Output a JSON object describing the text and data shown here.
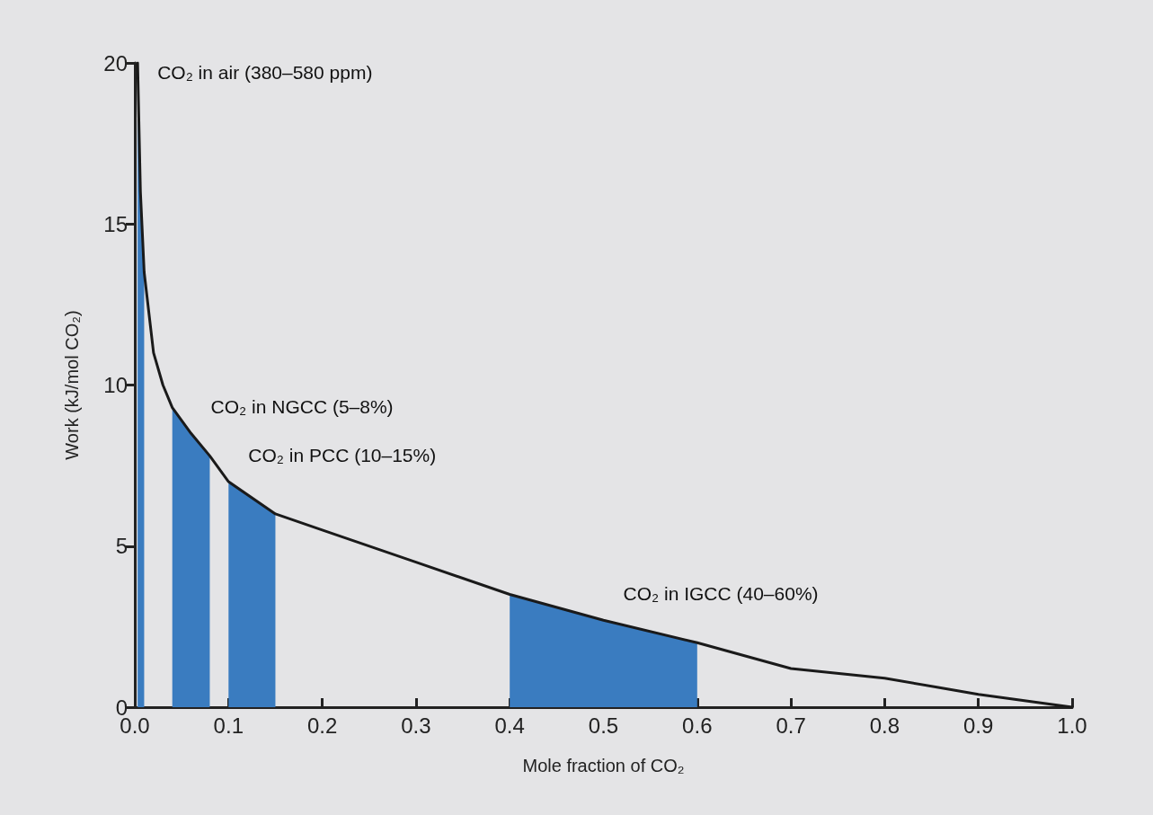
{
  "chart_data": {
    "type": "line",
    "xlabel": "Mole fraction of CO₂",
    "ylabel": "Work (kJ/mol CO₂)",
    "xlim": [
      0,
      1
    ],
    "ylim": [
      0,
      20
    ],
    "xticks": [
      {
        "value": 0,
        "label": "0.0"
      },
      0.1,
      0.2,
      0.3,
      0.4,
      0.5,
      0.6,
      0.7,
      0.8,
      0.9,
      {
        "value": 1,
        "label": "1.0"
      }
    ],
    "yticks": [
      0,
      5,
      10,
      15,
      20
    ],
    "grid": false,
    "marker": "none",
    "line_style": "solid",
    "series": [
      {
        "type": "area",
        "color": "#3a7cc0",
        "x": [
          0.003,
          0.006,
          0.01
        ],
        "values": [
          20,
          16,
          13.5
        ]
      },
      {
        "type": "area",
        "color": "#3a7cc0",
        "x": [
          0.04,
          0.06,
          0.08
        ],
        "values": [
          9.3,
          8.5,
          7.8
        ]
      },
      {
        "type": "area",
        "color": "#3a7cc0",
        "x": [
          0.1,
          0.15
        ],
        "values": [
          7.0,
          6.0
        ]
      },
      {
        "type": "area",
        "color": "#3a7cc0",
        "x": [
          0.4,
          0.5,
          0.6
        ],
        "values": [
          3.5,
          2.7,
          2.0
        ]
      },
      {
        "color": "#1a1a1a",
        "x": [
          0.003,
          0.006,
          0.01,
          0.02,
          0.03,
          0.04,
          0.06,
          0.08,
          0.1,
          0.15,
          0.2,
          0.3,
          0.4,
          0.5,
          0.6,
          0.7,
          0.8,
          0.9,
          1.0
        ],
        "values": [
          20,
          16,
          13.5,
          11,
          10,
          9.3,
          8.5,
          7.8,
          7.0,
          6.0,
          5.5,
          4.5,
          3.5,
          2.7,
          2.0,
          1.2,
          0.9,
          0.4,
          0
        ]
      }
    ],
    "annotations": [
      "CO₂ in air (380–580 ppm)",
      "CO₂ in NGCC (5–8%)",
      "CO₂ in PCC (10–15%)",
      "CO₂ in IGCC (40–60%)"
    ]
  }
}
